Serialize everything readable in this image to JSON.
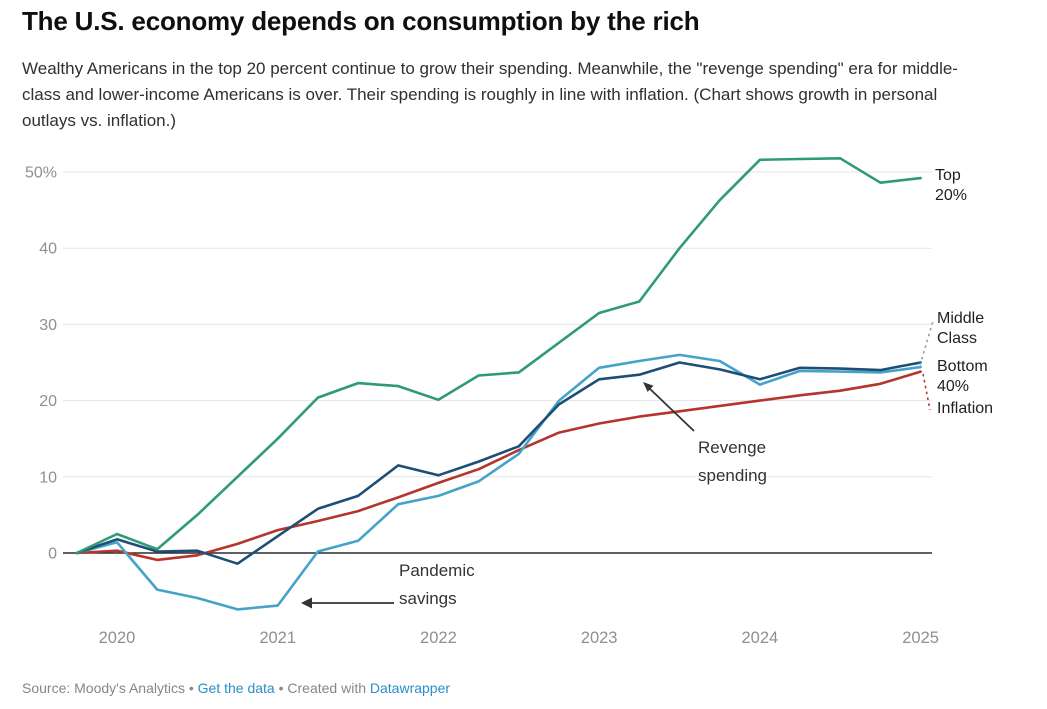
{
  "header": {
    "title": "The U.S. economy depends on consumption by the rich",
    "subtitle": "Wealthy Americans in the top 20 percent continue to grow their spending. Meanwhile, the \"revenge spending\" era for middle-class and lower-income Americans is over. Their spending is roughly in line with inflation. (Chart shows growth in personal outlays vs. inflation.)"
  },
  "chart_data": {
    "type": "line",
    "title": "The U.S. economy depends on consumption by the rich",
    "x_unit": "quarterly",
    "x_range": [
      "2019 Q4",
      "2025 Q1"
    ],
    "x_labels": [
      "2020",
      "2021",
      "2022",
      "2023",
      "2024",
      "2025"
    ],
    "x_label_positions": [
      1,
      5,
      9,
      13,
      17,
      21
    ],
    "y_ticks": [
      0,
      10,
      20,
      30,
      40,
      50
    ],
    "y_tick_labels": [
      "0",
      "10",
      "20",
      "30",
      "40",
      "50%"
    ],
    "ylim": [
      -10,
      55
    ],
    "grid": "horizontal",
    "legend_position": "right-of-lines",
    "series": [
      {
        "name": "Top 20%",
        "label": "Top\n20%",
        "color": "#2e9b73",
        "values": [
          0,
          2.5,
          0.5,
          5.0,
          10.0,
          15.0,
          20.4,
          22.3,
          21.9,
          20.1,
          23.3,
          23.7,
          27.6,
          31.5,
          33.0,
          40.0,
          46.3,
          51.6,
          51.7,
          51.8,
          48.6,
          49.2
        ]
      },
      {
        "name": "Middle Class",
        "label": "Middle\nClass",
        "color": "#45a3c9",
        "values": [
          0,
          1.4,
          -4.8,
          -5.9,
          -7.4,
          -6.9,
          0.2,
          1.6,
          6.4,
          7.5,
          9.4,
          13.0,
          20.0,
          24.3,
          25.2,
          26.0,
          25.2,
          22.1,
          23.9,
          23.8,
          23.7,
          24.4
        ]
      },
      {
        "name": "Bottom 40%",
        "label": "Bottom\n40%",
        "color": "#1d4f76",
        "values": [
          0,
          1.8,
          0.2,
          0.3,
          -1.4,
          2.2,
          5.8,
          7.5,
          11.5,
          10.2,
          12.0,
          14.0,
          19.5,
          22.8,
          23.4,
          25.0,
          24.1,
          22.8,
          24.3,
          24.2,
          24.0,
          25.0
        ]
      },
      {
        "name": "Inflation",
        "label": "Inflation",
        "color": "#b5352d",
        "values": [
          0,
          0.3,
          -0.9,
          -0.3,
          1.2,
          3.0,
          4.2,
          5.5,
          7.3,
          9.2,
          11.0,
          13.5,
          15.8,
          17.0,
          17.9,
          18.6,
          19.3,
          20.0,
          20.7,
          21.3,
          22.2,
          23.8
        ]
      }
    ],
    "annotations": [
      {
        "text": "Pandemic\nsavings",
        "points_to": "Middle Class line crossing zero in 2021"
      },
      {
        "text": "Revenge\nspending",
        "points_to": "Bottom 40% hump in 2023"
      }
    ]
  },
  "footer": {
    "source_text": "Source: Moody's Analytics",
    "separator": "•",
    "get_data_link": "Get the data",
    "created_with_text": "Created with",
    "datawrapper_link": "Datawrapper",
    "link_color": "#2b8dca"
  }
}
